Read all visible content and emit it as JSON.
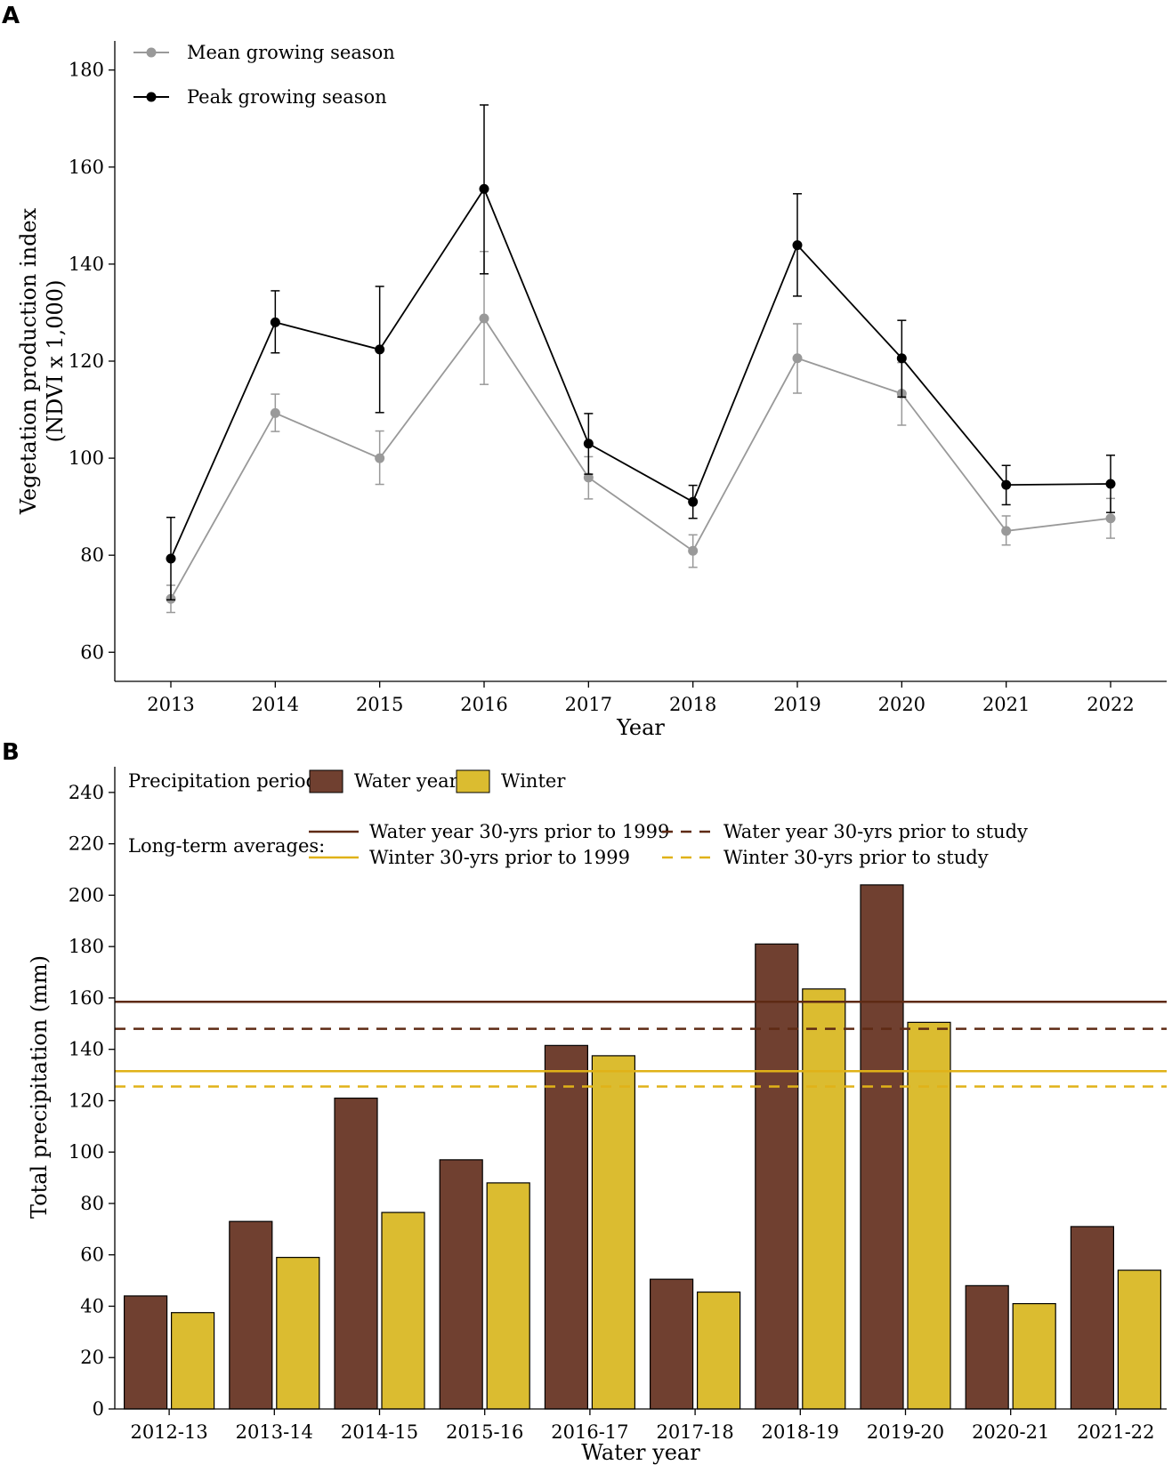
{
  "chart_data": [
    {
      "panel": "A",
      "type": "line",
      "title": "",
      "xlabel": "Year",
      "ylabel_line1": "Vegetation production index",
      "ylabel_line2": "(NDVI x 1,000)",
      "x": [
        "2013",
        "2014",
        "2015",
        "2016",
        "2017",
        "2018",
        "2019",
        "2020",
        "2021",
        "2022"
      ],
      "ylim": [
        54,
        186
      ],
      "yticks": [
        60,
        80,
        100,
        120,
        140,
        160,
        180
      ],
      "series": [
        {
          "name": "Mean growing season",
          "color": "#999999",
          "values": [
            71,
            109.3,
            100,
            128.8,
            96,
            80.9,
            120.6,
            113.3,
            85,
            87.6
          ],
          "err_low": [
            68.2,
            105.5,
            94.6,
            115.2,
            91.6,
            77.5,
            113.4,
            106.8,
            82.1,
            83.5
          ],
          "err_high": [
            73.8,
            113.2,
            105.6,
            142.6,
            100.3,
            84.2,
            127.7,
            119.7,
            88.1,
            91.7
          ]
        },
        {
          "name": "Peak growing season",
          "color": "#000000",
          "values": [
            79.3,
            128,
            122.4,
            155.5,
            103,
            91,
            143.9,
            120.6,
            94.5,
            94.7
          ],
          "err_low": [
            70.8,
            121.7,
            109.4,
            138,
            96.7,
            87.6,
            133.4,
            112.6,
            90.4,
            88.8
          ],
          "err_high": [
            87.8,
            134.5,
            135.4,
            172.8,
            109.2,
            94.4,
            154.5,
            128.4,
            98.5,
            100.6
          ]
        }
      ]
    },
    {
      "panel": "B",
      "type": "bar",
      "title": "",
      "xlabel": "Water year",
      "ylabel": "Total precipitation (mm)",
      "categories": [
        "2012-13",
        "2013-14",
        "2014-15",
        "2015-16",
        "2016-17",
        "2017-18",
        "2018-19",
        "2019-20",
        "2020-21",
        "2021-22"
      ],
      "ylim": [
        0,
        250
      ],
      "yticks": [
        0,
        20,
        40,
        60,
        80,
        100,
        120,
        140,
        160,
        180,
        200,
        220,
        240
      ],
      "legend_period_title": "Precipitation period:",
      "legend_avg_title": "Long-term averages:",
      "series": [
        {
          "name": "Water year",
          "color": "#704030",
          "values": [
            44,
            73,
            121,
            97,
            141.5,
            50.5,
            181,
            204,
            48,
            71
          ]
        },
        {
          "name": "Winter",
          "color": "#dbbc30",
          "values": [
            37.5,
            59,
            76.5,
            88,
            137.5,
            45.5,
            163.5,
            150.5,
            41,
            54
          ]
        }
      ],
      "reference_lines": [
        {
          "name": "Water year 30-yrs prior to 1999",
          "value": 158.5,
          "color": "#5e2a14",
          "style": "solid"
        },
        {
          "name": "Water year 30-yrs prior to study",
          "value": 148,
          "color": "#5e2a14",
          "style": "dashed"
        },
        {
          "name": "Winter 30-yrs prior to 1999",
          "value": 131.5,
          "color": "#e0b218",
          "style": "solid"
        },
        {
          "name": "Winter 30-yrs prior to study",
          "value": 125.5,
          "color": "#e0b218",
          "style": "dashed"
        }
      ]
    }
  ]
}
